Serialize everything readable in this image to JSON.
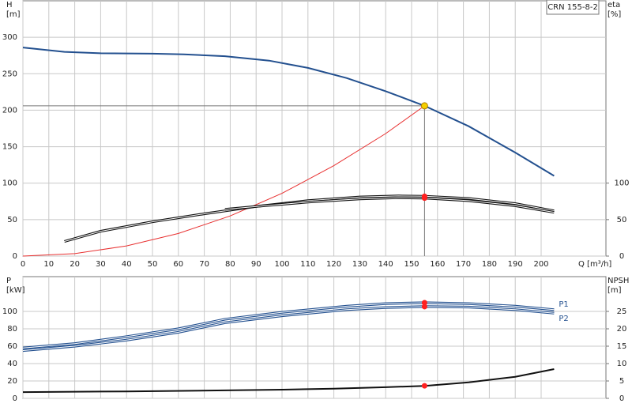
{
  "chart_data": [
    {
      "type": "line",
      "annotation": "CRN 155-8-2",
      "ylabel": [
        "H",
        "[m]"
      ],
      "y2label": [
        "eta",
        "[%]"
      ],
      "xlabel": "Q [m³/h]",
      "xlim": [
        0,
        225
      ],
      "ylim": [
        0,
        350
      ],
      "y2lim": [
        0,
        350
      ],
      "xticks": [
        0,
        10,
        20,
        30,
        40,
        50,
        60,
        70,
        80,
        90,
        100,
        110,
        120,
        130,
        140,
        150,
        160,
        170,
        180,
        190,
        200
      ],
      "yticks": [
        0,
        50,
        100,
        150,
        200,
        250,
        300
      ],
      "y2ticks": [
        0,
        50,
        100
      ],
      "grid": true,
      "series": [
        {
          "color": "#23508f",
          "x": [
            0,
            16,
            30,
            50,
            62,
            78,
            95,
            110,
            125,
            140,
            155,
            172,
            190,
            205
          ],
          "values": [
            286,
            280,
            278,
            277.5,
            276.5,
            274,
            268,
            258,
            244,
            226,
            206,
            178,
            142,
            110
          ]
        },
        {
          "color": "#e83030",
          "x": [
            0,
            20,
            40,
            60,
            80,
            100,
            120,
            140,
            155
          ],
          "values": [
            0,
            3.4,
            14,
            31,
            55,
            86,
            124,
            168,
            206
          ],
          "thin": true
        },
        {
          "color": "#111111",
          "axis": "y2",
          "double": true,
          "x": [
            16,
            30,
            50,
            70,
            90,
            110,
            130,
            145,
            155,
            172,
            190,
            205
          ],
          "values": [
            20,
            34,
            47,
            58,
            68,
            76,
            81,
            82.5,
            82,
            79,
            72,
            62
          ]
        },
        {
          "color": "#111111",
          "axis": "y2",
          "double": true,
          "x": [
            78,
            90,
            110,
            130,
            145,
            155,
            172,
            190,
            205
          ],
          "values": [
            64,
            68,
            74,
            78.5,
            80,
            79.5,
            76,
            69,
            60
          ]
        }
      ],
      "duty_point": {
        "x": 155,
        "y": 206,
        "color": "#f5d000"
      },
      "points": [
        {
          "x": 155,
          "y": 82,
          "axis": "y2"
        },
        {
          "x": 155,
          "y": 79.5,
          "axis": "y2"
        }
      ],
      "point_color": "#ff2020"
    },
    {
      "type": "line",
      "ylabel": [
        "P",
        "[kW]"
      ],
      "y2label": [
        "NPSH",
        "[m]"
      ],
      "xlim": [
        0,
        225
      ],
      "ylim": [
        0,
        140
      ],
      "y2lim": [
        0,
        35
      ],
      "xticks": [
        0,
        10,
        20,
        30,
        40,
        50,
        60,
        70,
        80,
        90,
        100,
        110,
        120,
        130,
        140,
        150,
        160,
        170,
        180,
        190,
        200
      ],
      "xtick_labels": false,
      "yticks": [
        0,
        20,
        40,
        60,
        80,
        100
      ],
      "y2ticks": [
        0,
        5,
        10,
        15,
        20,
        25
      ],
      "grid": true,
      "series": [
        {
          "name": "P1",
          "color": "#23508f",
          "double": true,
          "x": [
            0,
            20,
            40,
            60,
            78,
            100,
            125,
            140,
            155,
            172,
            190,
            205
          ],
          "values": [
            58,
            63,
            71,
            80,
            91,
            99,
            106,
            109,
            110,
            109,
            106,
            102
          ]
        },
        {
          "name": "P2",
          "color": "#23508f",
          "double": true,
          "x": [
            0,
            20,
            40,
            60,
            78,
            100,
            125,
            140,
            155,
            172,
            190,
            205
          ],
          "values": [
            55,
            60,
            67,
            76,
            87,
            95,
            102,
            104.5,
            105.5,
            105,
            102,
            98
          ]
        },
        {
          "color": "#111111",
          "axis": "y2",
          "x": [
            0,
            40,
            78,
            100,
            120,
            140,
            155,
            172,
            190,
            205
          ],
          "values": [
            1.8,
            2.0,
            2.3,
            2.5,
            2.8,
            3.2,
            3.6,
            4.6,
            6.2,
            8.4
          ]
        }
      ],
      "points": [
        {
          "x": 155,
          "y": 110
        },
        {
          "x": 155,
          "y": 105.5
        },
        {
          "x": 155,
          "y": 3.6,
          "axis": "y2"
        }
      ],
      "point_color": "#ff2020"
    }
  ]
}
